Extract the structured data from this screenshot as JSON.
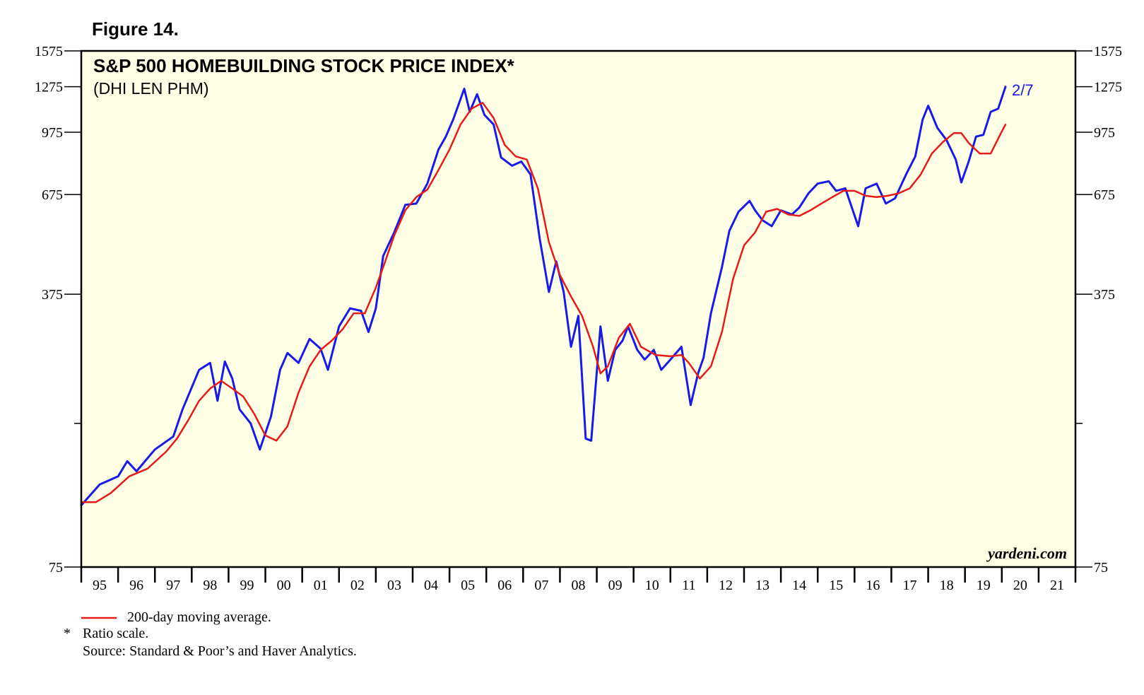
{
  "figure_label": "Figure 14.",
  "credit": "yardeni.com",
  "footnotes": {
    "legend_label": "200-day moving average.",
    "asterisk": "*",
    "ratio_note": "Ratio scale.",
    "source": "Source: Standard & Poor’s and Haver Analytics."
  },
  "colors": {
    "background": "#ffffe6",
    "index_line": "#1a1ae6",
    "moving_average": "#e61a1a",
    "axis": "#000000"
  },
  "chart_data": {
    "type": "line",
    "title": "S&P 500 HOMEBUILDING STOCK PRICE INDEX*",
    "subtitle": "(DHI LEN PHM)",
    "y_scale": "log",
    "ylim": [
      75,
      1575
    ],
    "y_ticks": [
      75,
      375,
      675,
      975,
      1275,
      1575
    ],
    "y_minor_ticks": [
      175
    ],
    "xlim": [
      1995,
      2022
    ],
    "x_tick_labels": [
      "95",
      "96",
      "97",
      "98",
      "99",
      "00",
      "01",
      "02",
      "03",
      "04",
      "05",
      "06",
      "07",
      "08",
      "09",
      "10",
      "11",
      "12",
      "13",
      "14",
      "15",
      "16",
      "17",
      "18",
      "19",
      "20",
      "21"
    ],
    "end_label": "2/7",
    "grid": false,
    "series": [
      {
        "name": "S&P 500 Homebuilding Stock Price Index",
        "color": "#1a1ae6",
        "x": [
          1995.0,
          1995.5,
          1996.0,
          1996.25,
          1996.5,
          1997.0,
          1997.5,
          1997.75,
          1998.2,
          1998.5,
          1998.7,
          1998.9,
          1999.1,
          1999.3,
          1999.6,
          1999.85,
          2000.15,
          2000.4,
          2000.6,
          2000.9,
          2001.2,
          2001.5,
          2001.7,
          2002.0,
          2002.3,
          2002.6,
          2002.8,
          2003.0,
          2003.2,
          2003.5,
          2003.8,
          2004.1,
          2004.4,
          2004.7,
          2004.9,
          2005.1,
          2005.4,
          2005.55,
          2005.75,
          2005.95,
          2006.2,
          2006.4,
          2006.7,
          2006.95,
          2007.2,
          2007.45,
          2007.7,
          2007.9,
          2008.1,
          2008.3,
          2008.5,
          2008.7,
          2008.85,
          2009.1,
          2009.3,
          2009.5,
          2009.7,
          2009.85,
          2010.1,
          2010.3,
          2010.55,
          2010.75,
          2011.0,
          2011.3,
          2011.55,
          2011.75,
          2011.9,
          2012.1,
          2012.4,
          2012.6,
          2012.85,
          2013.15,
          2013.3,
          2013.5,
          2013.75,
          2014.0,
          2014.3,
          2014.5,
          2014.75,
          2015.0,
          2015.3,
          2015.5,
          2015.75,
          2016.1,
          2016.3,
          2016.6,
          2016.85,
          2017.1,
          2017.4,
          2017.65,
          2017.85,
          2018.0,
          2018.25,
          2018.5,
          2018.75,
          2018.9,
          2019.1,
          2019.3,
          2019.5,
          2019.7,
          2019.9,
          2020.1
        ],
        "y": [
          108,
          122,
          128,
          140,
          132,
          150,
          162,
          190,
          240,
          250,
          200,
          252,
          228,
          190,
          175,
          150,
          182,
          240,
          265,
          250,
          288,
          272,
          240,
          310,
          345,
          340,
          300,
          345,
          470,
          540,
          635,
          640,
          720,
          880,
          950,
          1050,
          1260,
          1100,
          1220,
          1080,
          1020,
          840,
          800,
          820,
          760,
          520,
          380,
          455,
          380,
          275,
          330,
          160,
          158,
          310,
          225,
          270,
          285,
          310,
          270,
          255,
          270,
          240,
          255,
          275,
          195,
          235,
          258,
          335,
          440,
          545,
          610,
          650,
          615,
          580,
          560,
          615,
          600,
          625,
          680,
          720,
          730,
          690,
          700,
          560,
          700,
          720,
          640,
          660,
          760,
          845,
          1050,
          1140,
          1000,
          930,
          830,
          725,
          820,
          950,
          960,
          1100,
          1120,
          1275
        ]
      },
      {
        "name": "200-day moving average.",
        "color": "#e61a1a",
        "x": [
          1995.0,
          1995.4,
          1995.8,
          1996.3,
          1996.8,
          1997.3,
          1997.6,
          1997.9,
          1998.2,
          1998.5,
          1998.8,
          1999.1,
          1999.4,
          1999.7,
          2000.0,
          2000.3,
          2000.6,
          2000.9,
          2001.2,
          2001.5,
          2001.8,
          2002.1,
          2002.4,
          2002.7,
          2003.0,
          2003.2,
          2003.5,
          2003.8,
          2004.1,
          2004.4,
          2004.7,
          2005.0,
          2005.3,
          2005.6,
          2005.9,
          2006.2,
          2006.5,
          2006.8,
          2007.1,
          2007.4,
          2007.7,
          2008.0,
          2008.3,
          2008.6,
          2008.9,
          2009.1,
          2009.3,
          2009.6,
          2009.9,
          2010.2,
          2010.6,
          2011.0,
          2011.3,
          2011.5,
          2011.8,
          2012.1,
          2012.4,
          2012.7,
          2013.0,
          2013.3,
          2013.6,
          2013.9,
          2014.2,
          2014.5,
          2014.8,
          2015.1,
          2015.4,
          2015.7,
          2016.0,
          2016.3,
          2016.6,
          2016.9,
          2017.2,
          2017.5,
          2017.8,
          2018.1,
          2018.4,
          2018.7,
          2018.9,
          2019.1,
          2019.4,
          2019.7,
          2020.0,
          2020.1
        ],
        "y": [
          110,
          110,
          116,
          128,
          134,
          148,
          160,
          178,
          200,
          215,
          225,
          215,
          205,
          185,
          163,
          158,
          172,
          210,
          245,
          270,
          285,
          305,
          335,
          335,
          390,
          440,
          530,
          615,
          665,
          695,
          780,
          880,
          1020,
          1120,
          1160,
          1060,
          905,
          845,
          830,
          700,
          510,
          420,
          370,
          330,
          275,
          235,
          245,
          290,
          315,
          275,
          262,
          260,
          262,
          250,
          228,
          245,
          300,
          410,
          500,
          540,
          610,
          620,
          600,
          595,
          615,
          640,
          665,
          690,
          690,
          670,
          665,
          670,
          680,
          700,
          760,
          860,
          920,
          970,
          970,
          915,
          860,
          860,
          980,
          1020
        ]
      }
    ]
  }
}
